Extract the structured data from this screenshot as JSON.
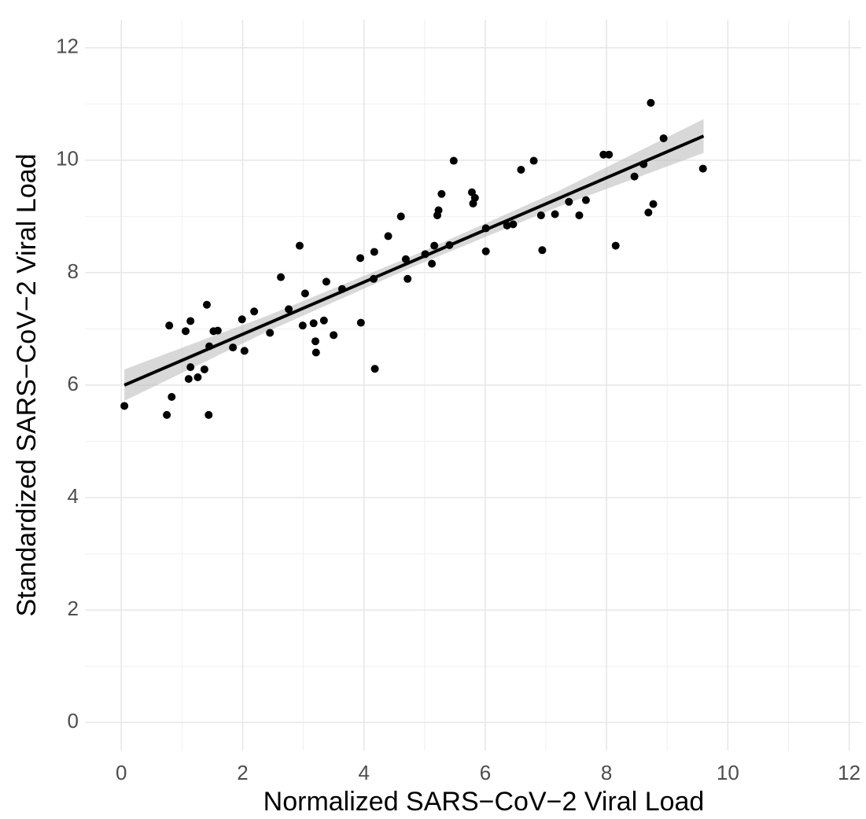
{
  "chart_data": {
    "type": "scatter",
    "x_label": "Normalized SARS−CoV−2 Viral Load",
    "y_label": "Standardized SARS−CoV−2 Viral Load",
    "x": [
      0.05,
      0.75,
      0.83,
      0.79,
      1.06,
      1.14,
      1.11,
      1.14,
      1.26,
      1.37,
      1.41,
      1.44,
      1.45,
      1.52,
      1.59,
      1.84,
      1.99,
      2.03,
      2.19,
      2.45,
      2.63,
      2.76,
      2.94,
      2.99,
      3.03,
      3.17,
      3.2,
      3.21,
      3.34,
      3.38,
      3.5,
      3.64,
      3.94,
      3.95,
      4.16,
      4.17,
      4.18,
      4.4,
      4.61,
      4.69,
      4.72,
      5.01,
      5.12,
      5.16,
      5.21,
      5.23,
      5.28,
      5.41,
      5.48,
      5.78,
      5.8,
      5.83,
      6.01,
      6.01,
      6.36,
      6.46,
      6.59,
      6.8,
      6.92,
      6.94,
      7.15,
      7.38,
      7.55,
      7.66,
      7.95,
      8.04,
      8.15,
      8.46,
      8.61,
      8.69,
      8.73,
      8.77,
      8.94,
      9.59
    ],
    "values": [
      5.63,
      5.47,
      5.79,
      7.06,
      6.96,
      7.14,
      6.11,
      6.32,
      6.14,
      6.28,
      7.43,
      5.47,
      6.69,
      6.96,
      6.97,
      6.67,
      7.17,
      6.61,
      7.31,
      6.93,
      7.92,
      7.35,
      8.48,
      7.06,
      7.63,
      7.1,
      6.78,
      6.58,
      7.15,
      7.84,
      6.89,
      7.71,
      8.26,
      7.11,
      7.89,
      8.37,
      6.29,
      8.65,
      9.0,
      8.24,
      7.89,
      8.33,
      8.16,
      8.48,
      9.02,
      9.11,
      9.4,
      8.49,
      9.99,
      9.43,
      9.23,
      9.33,
      8.79,
      8.38,
      8.84,
      8.86,
      9.83,
      9.99,
      9.02,
      8.4,
      9.04,
      9.26,
      9.02,
      9.29,
      10.1,
      10.1,
      8.48,
      9.71,
      9.93,
      9.07,
      11.02,
      9.22,
      10.39,
      9.85
    ],
    "color": "#000000",
    "fit": {
      "x": [
        0.05,
        9.6
      ],
      "y": [
        6.0,
        10.43
      ],
      "color": "#000000"
    },
    "band": {
      "x": [
        0.05,
        2.4,
        4.8,
        7.2,
        9.6
      ],
      "lower": [
        5.72,
        6.95,
        8.1,
        9.17,
        10.13
      ],
      "upper": [
        6.28,
        7.23,
        8.3,
        9.45,
        10.73
      ],
      "color": "#bebebe"
    },
    "xlim": [
      -0.6,
      12.2
    ],
    "ylim": [
      -0.5,
      12.5
    ],
    "xticks": [
      0,
      2,
      4,
      6,
      8,
      10,
      12
    ],
    "yticks": [
      0,
      2,
      4,
      6,
      8,
      10,
      12
    ],
    "grid": true
  }
}
